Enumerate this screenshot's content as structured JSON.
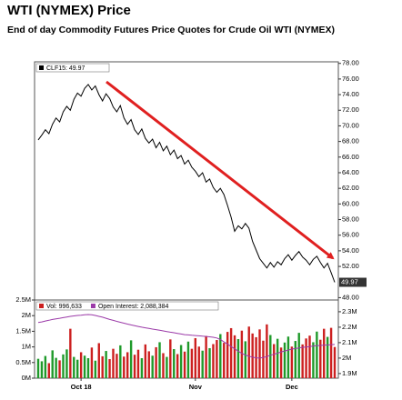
{
  "header": {
    "title": "WTI (NYMEX) Price",
    "subtitle": "End of day Commodity Futures Price Quotes for Crude Oil WTI (NYMEX)"
  },
  "chart_data": [
    {
      "type": "line",
      "series": [
        {
          "name": "CLF15: 49.97",
          "color": "#000000",
          "values": [
            68.2,
            68.8,
            69.5,
            69,
            70.2,
            71,
            70.5,
            71.8,
            72.5,
            72,
            73.4,
            74.2,
            73.8,
            74.8,
            75.3,
            74.6,
            75.1,
            74,
            73.2,
            74.1,
            73.5,
            72.4,
            71.8,
            72.6,
            71,
            70.2,
            70.8,
            69.5,
            68.9,
            69.6,
            68.4,
            67.8,
            68.3,
            67.2,
            67.9,
            66.8,
            67.4,
            66.3,
            66.9,
            65.8,
            66.2,
            65.1,
            65.6,
            64.7,
            64.2,
            63.5,
            64,
            62.8,
            63.2,
            62.1,
            61.5,
            62,
            61.2,
            59.8,
            58.3,
            56.5,
            57.2,
            56.8,
            57.5,
            56.9,
            55.2,
            54.1,
            53,
            52.4,
            51.8,
            52.5,
            51.9,
            52.6,
            52.2,
            53,
            53.5,
            52.8,
            53.4,
            53.9,
            53.2,
            52.8,
            52.2,
            52.9,
            53.3,
            52.5,
            51.8,
            52.4,
            51.2,
            49.97
          ]
        }
      ],
      "ylim": [
        47.7,
        78.2
      ],
      "yticks": [
        {
          "value": 78,
          "label": "78.00"
        },
        {
          "value": 76,
          "label": "76.00"
        },
        {
          "value": 74,
          "label": "74.00"
        },
        {
          "value": 72,
          "label": "72.00"
        },
        {
          "value": 70,
          "label": "70.00"
        },
        {
          "value": 68,
          "label": "68.00"
        },
        {
          "value": 66,
          "label": "66.00"
        },
        {
          "value": 64,
          "label": "64.00"
        },
        {
          "value": 62,
          "label": "62.00"
        },
        {
          "value": 60,
          "label": "60.00"
        },
        {
          "value": 58,
          "label": "58.00"
        },
        {
          "value": 56,
          "label": "56.00"
        },
        {
          "value": 54,
          "label": "54.00"
        },
        {
          "value": 52,
          "label": "52.00"
        },
        {
          "value": 48,
          "label": "48.00"
        }
      ]
    },
    {
      "type": "bar",
      "categories": [
        null,
        null,
        null,
        null,
        null,
        null,
        null,
        null,
        null,
        null,
        null,
        null,
        "Oct 18",
        null,
        null,
        null,
        null,
        null,
        null,
        null,
        null,
        null,
        null,
        null,
        null,
        null,
        null,
        null,
        null,
        null,
        null,
        null,
        null,
        null,
        null,
        null,
        null,
        null,
        null,
        null,
        null,
        null,
        null,
        null,
        "Nov",
        null,
        null,
        null,
        null,
        null,
        null,
        null,
        null,
        null,
        null,
        null,
        null,
        null,
        null,
        null,
        null,
        null,
        null,
        null,
        null,
        null,
        null,
        null,
        null,
        null,
        null,
        "Dec",
        null,
        null,
        null,
        null,
        null,
        null,
        null,
        null,
        null,
        null,
        null,
        null
      ],
      "series": [
        {
          "name": "Vol: 996,633",
          "up_color": "#1f9a2a",
          "down_color": "#cc1f1f",
          "values": [
            620000,
            540000,
            710000,
            480000,
            890000,
            650000,
            570000,
            760000,
            920000,
            1580000,
            680000,
            590000,
            830000,
            720000,
            640000,
            980000,
            560000,
            1120000,
            700000,
            870000,
            610000,
            940000,
            780000,
            1050000,
            690000,
            830000,
            1210000,
            750000,
            910000,
            640000,
            1080000,
            860000,
            720000,
            990000,
            1150000,
            800000,
            680000,
            1240000,
            930000,
            770000,
            1060000,
            850000,
            1170000,
            940000,
            1280000,
            1010000,
            880000,
            1350000,
            960000,
            1090000,
            1220000,
            1410000,
            1130000,
            1480000,
            1600000,
            1370000,
            1250000,
            1520000,
            1180000,
            1650000,
            1430000,
            1310000,
            1560000,
            1200000,
            1720000,
            1380000,
            1090000,
            1260000,
            980000,
            1140000,
            1330000,
            1010000,
            1190000,
            1450000,
            1080000,
            1270000,
            1360000,
            1150000,
            1490000,
            1230000,
            1580000,
            1320000,
            1610000,
            996633
          ]
        },
        {
          "name": "Open Interest: 2,088,384",
          "color": "#9b3aa8",
          "axis": "y2",
          "values": [
            2230000,
            2234000,
            2240000,
            2245000,
            2250000,
            2254000,
            2258000,
            2262000,
            2266000,
            2270000,
            2273000,
            2276000,
            2278000,
            2280000,
            2282000,
            2280000,
            2276000,
            2270000,
            2265000,
            2258000,
            2250000,
            2244000,
            2238000,
            2232000,
            2226000,
            2220000,
            2215000,
            2210000,
            2205000,
            2200000,
            2196000,
            2192000,
            2188000,
            2184000,
            2180000,
            2176000,
            2172000,
            2168000,
            2164000,
            2160000,
            2156000,
            2152000,
            2150000,
            2148000,
            2146000,
            2144000,
            2142000,
            2140000,
            2138000,
            2135000,
            2130000,
            2120000,
            2105000,
            2090000,
            2075000,
            2060000,
            2045000,
            2030000,
            2020000,
            2012000,
            2006000,
            2002000,
            2000000,
            2004000,
            2010000,
            2018000,
            2025000,
            2032000,
            2040000,
            2046000,
            2052000,
            2058000,
            2062000,
            2066000,
            2070000,
            2072000,
            2075000,
            2078000,
            2080000,
            2082000,
            2084000,
            2085000,
            2087000,
            2088384
          ]
        }
      ],
      "ylim": [
        0,
        2500000
      ],
      "yticks": [
        {
          "value": 2500000,
          "label": "2.5M"
        },
        {
          "value": 2000000,
          "label": "2M"
        },
        {
          "value": 1500000,
          "label": "1.5M"
        },
        {
          "value": 1000000,
          "label": "1M"
        },
        {
          "value": 500000,
          "label": "0.5M"
        },
        {
          "value": 0,
          "label": "0M"
        }
      ],
      "y2lim": [
        1870000,
        2376000
      ],
      "y2ticks": [
        {
          "value": 2300000,
          "label": "2.3M"
        },
        {
          "value": 2200000,
          "label": "2.2M"
        },
        {
          "value": 2100000,
          "label": "2.1M"
        },
        {
          "value": 2000000,
          "label": "2M"
        },
        {
          "value": 1900000,
          "label": "1.9M"
        }
      ]
    }
  ]
}
